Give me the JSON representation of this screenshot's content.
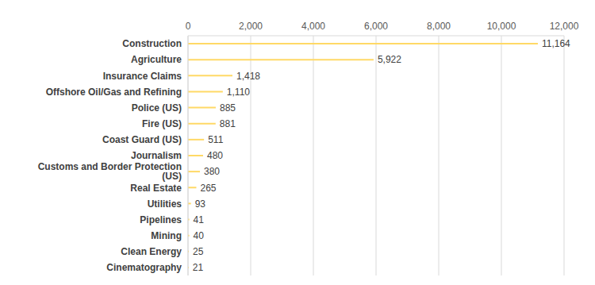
{
  "chart_data": {
    "type": "bar",
    "orientation": "horizontal",
    "categories": [
      "Construction",
      "Agriculture",
      "Insurance Claims",
      "Offshore Oil/Gas and Refining",
      "Police (US)",
      "Fire (US)",
      "Coast Guard (US)",
      "Journalism",
      "Customs and Border Protection (US)",
      "Real Estate",
      "Utilities",
      "Pipelines",
      "Mining",
      "Clean Energy",
      "Cinematography"
    ],
    "values": [
      11164,
      5922,
      1418,
      1110,
      885,
      881,
      511,
      480,
      380,
      265,
      93,
      41,
      40,
      25,
      21
    ],
    "value_labels": [
      "11,164",
      "5,922",
      "1,418",
      "1,110",
      "885",
      "881",
      "511",
      "480",
      "380",
      "265",
      "93",
      "41",
      "40",
      "25",
      "21"
    ],
    "data_labels": true,
    "color": "#ffd966",
    "xlim": [
      0,
      12000
    ],
    "xticks": [
      0,
      {
        "value": 2000,
        "label": "2,000"
      },
      {
        "value": 4000,
        "label": "4,000"
      },
      {
        "value": 6000,
        "label": "6,000"
      },
      {
        "value": 8000,
        "label": "8,000"
      },
      {
        "value": 10000,
        "label": "10,000"
      },
      {
        "value": 12000,
        "label": "12,000"
      }
    ],
    "grid": true
  }
}
